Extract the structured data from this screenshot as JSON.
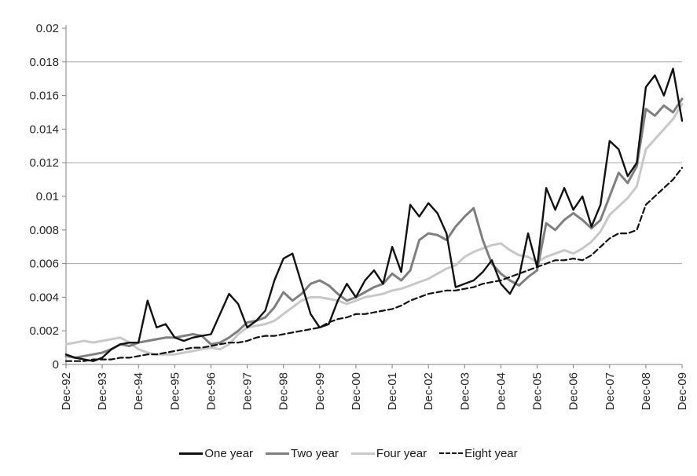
{
  "chart_data": {
    "type": "line",
    "title": "",
    "xlabel": "",
    "ylabel": "",
    "ylim": [
      0,
      0.02
    ],
    "grid": "horizontal",
    "gridline_values": [
      0.006,
      0.012,
      0.018
    ],
    "legend_position": "bottom",
    "x_description": "quarterly observations from Dec-1992 to Dec-2009, yearly tick labels",
    "points_per_tick": 4,
    "x_tick_labels": [
      "Dec-92",
      "Dec-93",
      "Dec-94",
      "Dec-95",
      "Dec-96",
      "Dec-97",
      "Dec-98",
      "Dec-99",
      "Dec-00",
      "Dec-01",
      "Dec-02",
      "Dec-03",
      "Dec-04",
      "Dec-05",
      "Dec-06",
      "Dec-07",
      "Dec-08",
      "Dec-09"
    ],
    "y_ticks": [
      {
        "label": "0",
        "value": 0
      },
      {
        "label": "0.002",
        "value": 0.002
      },
      {
        "label": "0.004",
        "value": 0.004
      },
      {
        "label": "0.006",
        "value": 0.006
      },
      {
        "label": "0.008",
        "value": 0.008
      },
      {
        "label": "0.01",
        "value": 0.01
      },
      {
        "label": "0.012",
        "value": 0.012
      },
      {
        "label": "0.014",
        "value": 0.014
      },
      {
        "label": "0.016",
        "value": 0.016
      },
      {
        "label": "0.018",
        "value": 0.018
      },
      {
        "label": "0.02",
        "value": 0.02
      }
    ],
    "series": [
      {
        "name": "One year",
        "color": "#111111",
        "line_style": "solid",
        "values": [
          0.0006,
          0.0004,
          0.0003,
          0.0002,
          0.0004,
          0.0009,
          0.0012,
          0.0013,
          0.0013,
          0.0038,
          0.0022,
          0.0024,
          0.0016,
          0.0014,
          0.0016,
          0.0017,
          0.0018,
          0.003,
          0.0042,
          0.0036,
          0.0022,
          0.0026,
          0.0032,
          0.005,
          0.0063,
          0.0066,
          0.0048,
          0.003,
          0.0022,
          0.0024,
          0.0038,
          0.0048,
          0.004,
          0.005,
          0.0056,
          0.0048,
          0.007,
          0.0055,
          0.0095,
          0.0088,
          0.0096,
          0.009,
          0.0078,
          0.0046,
          0.0048,
          0.005,
          0.0055,
          0.0062,
          0.0048,
          0.0042,
          0.0052,
          0.0078,
          0.0058,
          0.0105,
          0.0092,
          0.0105,
          0.0092,
          0.01,
          0.0082,
          0.0095,
          0.0133,
          0.0128,
          0.0112,
          0.012,
          0.0165,
          0.0172,
          0.016,
          0.0176,
          0.0145
        ]
      },
      {
        "name": "Two year",
        "color": "#7f7f7f",
        "line_style": "solid",
        "values": [
          0.0005,
          0.0004,
          0.0005,
          0.0006,
          0.0007,
          0.0009,
          0.0012,
          0.0011,
          0.0013,
          0.0014,
          0.0015,
          0.0016,
          0.0016,
          0.0017,
          0.0018,
          0.0017,
          0.0012,
          0.0013,
          0.0016,
          0.002,
          0.0025,
          0.0026,
          0.0028,
          0.0034,
          0.0043,
          0.0038,
          0.0042,
          0.0048,
          0.005,
          0.0047,
          0.0042,
          0.0038,
          0.004,
          0.0043,
          0.0046,
          0.0048,
          0.0054,
          0.005,
          0.0056,
          0.0074,
          0.0078,
          0.0077,
          0.0074,
          0.0082,
          0.0088,
          0.0093,
          0.0074,
          0.006,
          0.0054,
          0.005,
          0.0047,
          0.0052,
          0.0056,
          0.0084,
          0.008,
          0.0086,
          0.009,
          0.0086,
          0.0081,
          0.0086,
          0.01,
          0.0114,
          0.0108,
          0.0118,
          0.0152,
          0.0148,
          0.0154,
          0.015,
          0.0158
        ]
      },
      {
        "name": "Four year",
        "color": "#c8c8c8",
        "line_style": "solid",
        "values": [
          0.0012,
          0.0013,
          0.0014,
          0.0013,
          0.0014,
          0.0015,
          0.0016,
          0.0013,
          0.0009,
          0.0007,
          0.0006,
          0.0006,
          0.0006,
          0.0007,
          0.0008,
          0.0009,
          0.001,
          0.0009,
          0.0012,
          0.0018,
          0.0022,
          0.0023,
          0.0024,
          0.0026,
          0.003,
          0.0034,
          0.0038,
          0.004,
          0.004,
          0.0039,
          0.0038,
          0.0036,
          0.0038,
          0.004,
          0.0041,
          0.0042,
          0.0044,
          0.0045,
          0.0047,
          0.0049,
          0.0051,
          0.0054,
          0.0057,
          0.0059,
          0.0064,
          0.0067,
          0.0069,
          0.0071,
          0.0072,
          0.0068,
          0.0065,
          0.0064,
          0.0061,
          0.0064,
          0.0066,
          0.0068,
          0.0066,
          0.0069,
          0.0073,
          0.0079,
          0.0089,
          0.0094,
          0.0099,
          0.0106,
          0.0128,
          0.0134,
          0.014,
          0.0146,
          0.0155
        ]
      },
      {
        "name": "Eight year",
        "color": "#111111",
        "line_style": "dashed",
        "values": [
          0.0002,
          0.0002,
          0.0002,
          0.0003,
          0.0003,
          0.0003,
          0.0004,
          0.0004,
          0.0005,
          0.0006,
          0.0006,
          0.0007,
          0.0008,
          0.0009,
          0.001,
          0.001,
          0.0011,
          0.0012,
          0.0013,
          0.0013,
          0.0014,
          0.0016,
          0.0017,
          0.0017,
          0.0018,
          0.0019,
          0.002,
          0.0021,
          0.0022,
          0.0025,
          0.0027,
          0.0028,
          0.003,
          0.003,
          0.0031,
          0.0032,
          0.0033,
          0.0035,
          0.0038,
          0.004,
          0.0042,
          0.0043,
          0.0044,
          0.0044,
          0.0045,
          0.0046,
          0.0048,
          0.0049,
          0.005,
          0.0052,
          0.0054,
          0.0056,
          0.0058,
          0.006,
          0.0062,
          0.0062,
          0.0063,
          0.0062,
          0.0065,
          0.007,
          0.0075,
          0.0078,
          0.0078,
          0.008,
          0.0095,
          0.01,
          0.0105,
          0.011,
          0.0117
        ]
      }
    ],
    "style_colors": {
      "axis": "#808080",
      "gridline": "#a6a6a6",
      "tick_label": "#262626"
    }
  }
}
